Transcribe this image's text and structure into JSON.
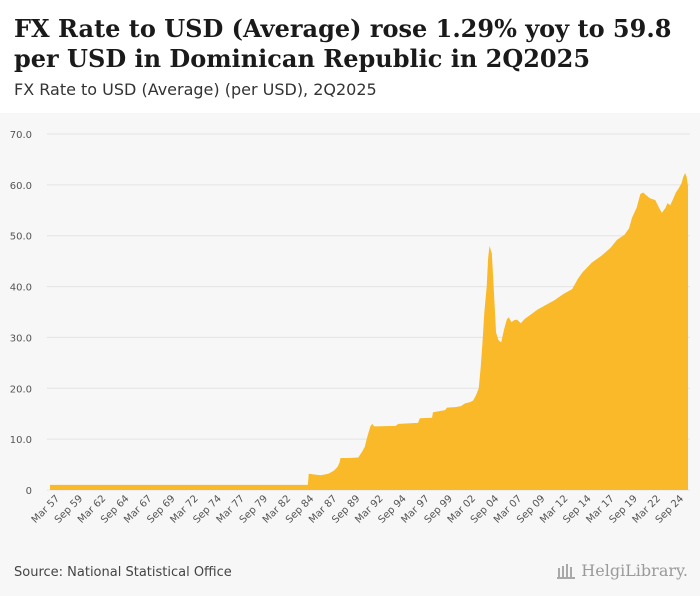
{
  "header": {
    "title": "FX Rate to USD (Average) rose 1.29% yoy to 59.8 per USD in Dominican Republic in 2Q2025",
    "subtitle": "FX Rate to USD (Average) (per USD), 2Q2025"
  },
  "footer": {
    "source": "Source: National Statistical Office",
    "brand": "HelgiLibrary."
  },
  "colors": {
    "fill": "#f9b928",
    "plot_bg": "#f7f7f7",
    "grid": "#e4e4e4"
  },
  "chart_data": {
    "type": "area",
    "title": "FX Rate to USD (Average) (per USD), 2Q2025",
    "xlabel": "",
    "ylabel": "",
    "ylim": [
      0,
      70
    ],
    "yticks": [
      "0",
      "10.0",
      "20.0",
      "30.0",
      "40.0",
      "50.0",
      "60.0",
      "70.0"
    ],
    "xticks": [
      "Mar 57",
      "Sep 59",
      "Mar 62",
      "Sep 64",
      "Mar 67",
      "Sep 69",
      "Mar 72",
      "Sep 74",
      "Mar 77",
      "Sep 79",
      "Mar 82",
      "Sep 84",
      "Mar 87",
      "Sep 89",
      "Mar 92",
      "Sep 94",
      "Mar 97",
      "Sep 99",
      "Mar 02",
      "Sep 04",
      "Mar 07",
      "Sep 09",
      "Mar 12",
      "Sep 14",
      "Mar 17",
      "Sep 19",
      "Mar 22",
      "Sep 24"
    ],
    "series": [
      {
        "name": "FX Rate to USD (Average)",
        "points": [
          [
            1957.0,
            1.0
          ],
          [
            1984.6,
            1.0
          ],
          [
            1984.7,
            3.2
          ],
          [
            1985.5,
            3.0
          ],
          [
            1986.0,
            2.9
          ],
          [
            1986.8,
            3.2
          ],
          [
            1987.4,
            3.8
          ],
          [
            1987.8,
            4.6
          ],
          [
            1988.0,
            5.4
          ],
          [
            1988.1,
            6.3
          ],
          [
            1989.0,
            6.3
          ],
          [
            1990.0,
            6.4
          ],
          [
            1990.4,
            7.5
          ],
          [
            1990.7,
            8.5
          ],
          [
            1990.9,
            10.0
          ],
          [
            1991.1,
            11.3
          ],
          [
            1991.3,
            12.5
          ],
          [
            1991.5,
            13.0
          ],
          [
            1991.7,
            12.5
          ],
          [
            1994.0,
            12.6
          ],
          [
            1994.3,
            13.0
          ],
          [
            1996.4,
            13.2
          ],
          [
            1996.6,
            14.1
          ],
          [
            1997.9,
            14.2
          ],
          [
            1998.0,
            15.3
          ],
          [
            1999.3,
            15.7
          ],
          [
            1999.5,
            16.2
          ],
          [
            2000.4,
            16.3
          ],
          [
            2001.0,
            16.5
          ],
          [
            2001.4,
            17.0
          ],
          [
            2002.0,
            17.3
          ],
          [
            2002.3,
            17.6
          ],
          [
            2002.6,
            18.6
          ],
          [
            2002.9,
            20.0
          ],
          [
            2003.1,
            24.0
          ],
          [
            2003.3,
            29.0
          ],
          [
            2003.5,
            35.0
          ],
          [
            2003.75,
            40.0
          ],
          [
            2003.9,
            45.5
          ],
          [
            2004.05,
            48.0
          ],
          [
            2004.3,
            46.5
          ],
          [
            2004.55,
            38.0
          ],
          [
            2004.75,
            31.0
          ],
          [
            2005.0,
            29.5
          ],
          [
            2005.3,
            29.0
          ],
          [
            2005.6,
            31.5
          ],
          [
            2005.9,
            33.5
          ],
          [
            2006.1,
            34.0
          ],
          [
            2006.4,
            33.0
          ],
          [
            2006.7,
            33.4
          ],
          [
            2007.0,
            33.5
          ],
          [
            2007.4,
            32.8
          ],
          [
            2007.8,
            33.6
          ],
          [
            2008.4,
            34.4
          ],
          [
            2009.2,
            35.5
          ],
          [
            2010.0,
            36.3
          ],
          [
            2011.0,
            37.3
          ],
          [
            2012.0,
            38.6
          ],
          [
            2012.9,
            39.5
          ],
          [
            2013.5,
            41.5
          ],
          [
            2014.0,
            42.8
          ],
          [
            2015.0,
            44.7
          ],
          [
            2016.0,
            46.0
          ],
          [
            2017.0,
            47.6
          ],
          [
            2017.7,
            49.2
          ],
          [
            2018.5,
            50.2
          ],
          [
            2019.0,
            51.5
          ],
          [
            2019.3,
            53.5
          ],
          [
            2019.8,
            55.5
          ],
          [
            2020.2,
            58.2
          ],
          [
            2020.5,
            58.5
          ],
          [
            2020.8,
            58.0
          ],
          [
            2021.2,
            57.4
          ],
          [
            2021.8,
            57.0
          ],
          [
            2022.2,
            55.5
          ],
          [
            2022.5,
            54.5
          ],
          [
            2022.9,
            55.5
          ],
          [
            2023.1,
            56.4
          ],
          [
            2023.4,
            56.0
          ],
          [
            2023.7,
            57.2
          ],
          [
            2024.0,
            58.5
          ],
          [
            2024.3,
            59.3
          ],
          [
            2024.6,
            60.3
          ],
          [
            2024.8,
            61.6
          ],
          [
            2025.0,
            62.3
          ],
          [
            2025.15,
            61.6
          ],
          [
            2025.3,
            59.8
          ]
        ]
      }
    ]
  }
}
